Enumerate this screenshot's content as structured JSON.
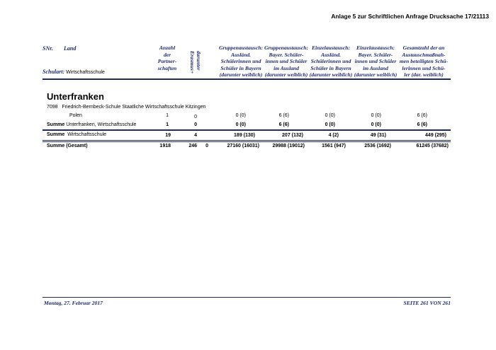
{
  "header_title": "Anlage 5 zur Schriftlichen Anfrage Drucksache 17/21113",
  "columns": {
    "snr": "SNr.",
    "land": "Land",
    "schulart_label": "Schulart:",
    "schulart_value": "Wirtschaftsschule",
    "anzahl": [
      "Anzahl",
      "der",
      "Partner-",
      "schaften"
    ],
    "darunter": [
      "darunter",
      "Erasmus+"
    ],
    "grp_ausl": [
      "Gruppenaustausch:",
      "Ausländ.",
      "Schülerinnen und",
      "Schüler in Bayern",
      "(darunter weiblich)"
    ],
    "grp_bayer": [
      "Gruppenaustausch:",
      "Bayer. Schüler-",
      "innen und Schüler",
      "im Ausland",
      "(darunter weiblich)"
    ],
    "einz_ausl": [
      "Einzelaustausch:",
      "Ausländ.",
      "Schülerinnen und",
      "Schüler in Bayern",
      "(darunter weiblich)"
    ],
    "einz_bayer": [
      "Einzelaustausch:",
      "Bayer. Schüler-",
      "innen und Schüler",
      "im Ausland",
      "(darunter weiblich)"
    ],
    "gesamt": [
      "Gesamtzahl der an",
      "Austauschmaßnah-",
      "men beteiligten Schü-",
      "lerinnen und Schü-",
      "ler (dar. weiblich)"
    ]
  },
  "region": "Unterfranken",
  "school": {
    "snr": "7098",
    "name": "Friedrich-Bernbeck-Schule Staatliche Wirtschaftsschule Kitzingen"
  },
  "rows": {
    "polen": {
      "label": "Polen",
      "anzahl": "1",
      "darunter": "0",
      "g1": "0 (0)",
      "g2": "6 (6)",
      "e1": "0 (0)",
      "e2": "0 (0)",
      "ges": "6 (6)"
    },
    "sum_region": {
      "label_bold": "Summe",
      "label": "Unterfranken, Wirtschaftsschule",
      "anzahl": "1",
      "darunter": "0",
      "g1": "0 (0)",
      "g2": "6 (6)",
      "e1": "0 (0)",
      "e2": "0 (0)",
      "ges": "6 (6)"
    },
    "sum_schulart": {
      "label_bold": "Summe",
      "label": "Wirtschaftsschule",
      "anzahl": "19",
      "darunter": "4",
      "g1": "189 (130)",
      "g2": "207 (132)",
      "e1": "4 (2)",
      "e2": "49 (31)",
      "ges": "449 (295)"
    },
    "sum_total": {
      "label": "Summe (Gesamt)",
      "anzahl": "1918",
      "darunter": "246",
      "extra": "0",
      "g1": "27160 (16031)",
      "g2": "29988 (19012)",
      "e1": "1561 (947)",
      "e2": "2536 (1692)",
      "ges": "61245 (37682)"
    }
  },
  "footer": {
    "date": "Montag, 27. Februar 2017",
    "page": "SEITE 261 VON 261"
  }
}
